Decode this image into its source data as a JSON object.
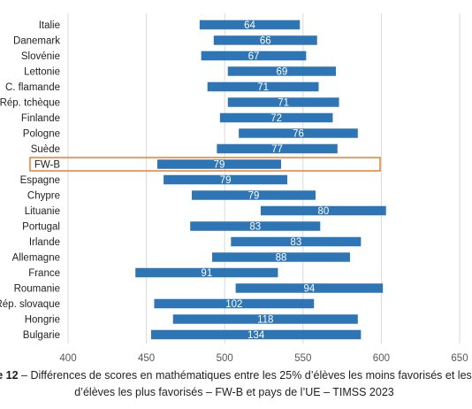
{
  "chart_data": {
    "type": "bar",
    "subtype": "floating-range",
    "categories": [
      "Italie",
      "Danemark",
      "Slovénie",
      "Lettonie",
      "C. flamande",
      "Rép. tchèque",
      "Finlande",
      "Pologne",
      "Suède",
      "FW-B",
      "Espagne",
      "Chypre",
      "Lituanie",
      "Portugal",
      "Irlande",
      "Allemagne",
      "France",
      "Roumanie",
      "Rép. slovaque",
      "Hongrie",
      "Bulgarie"
    ],
    "low": [
      484,
      493,
      485,
      502,
      489,
      502,
      497,
      509,
      495,
      457,
      461,
      479,
      523,
      478,
      504,
      492,
      443,
      507,
      455,
      467,
      453
    ],
    "high": [
      548,
      559,
      552,
      571,
      560,
      573,
      569,
      585,
      572,
      536,
      540,
      558,
      603,
      561,
      587,
      580,
      534,
      601,
      557,
      585,
      587
    ],
    "values": [
      64,
      66,
      67,
      69,
      71,
      71,
      72,
      76,
      77,
      79,
      79,
      79,
      80,
      83,
      83,
      88,
      91,
      94,
      102,
      118,
      134
    ],
    "xlim": [
      400,
      650
    ],
    "xticks": [
      400,
      450,
      500,
      550,
      600,
      650
    ],
    "grid": "vertical",
    "highlight": "FW-B",
    "colors": {
      "bar": "#2E75B6",
      "highlight_box": "#ED7D31",
      "bar_text": "#FFFFFF"
    }
  },
  "caption": {
    "label": "e 12",
    "line1": " – Différences de scores en mathématiques entre les 25% d’élèves les moins favorisés et les",
    "line2": "d’élèves les plus favorisés – FW-B et pays de l’UE – TIMSS 2023"
  }
}
